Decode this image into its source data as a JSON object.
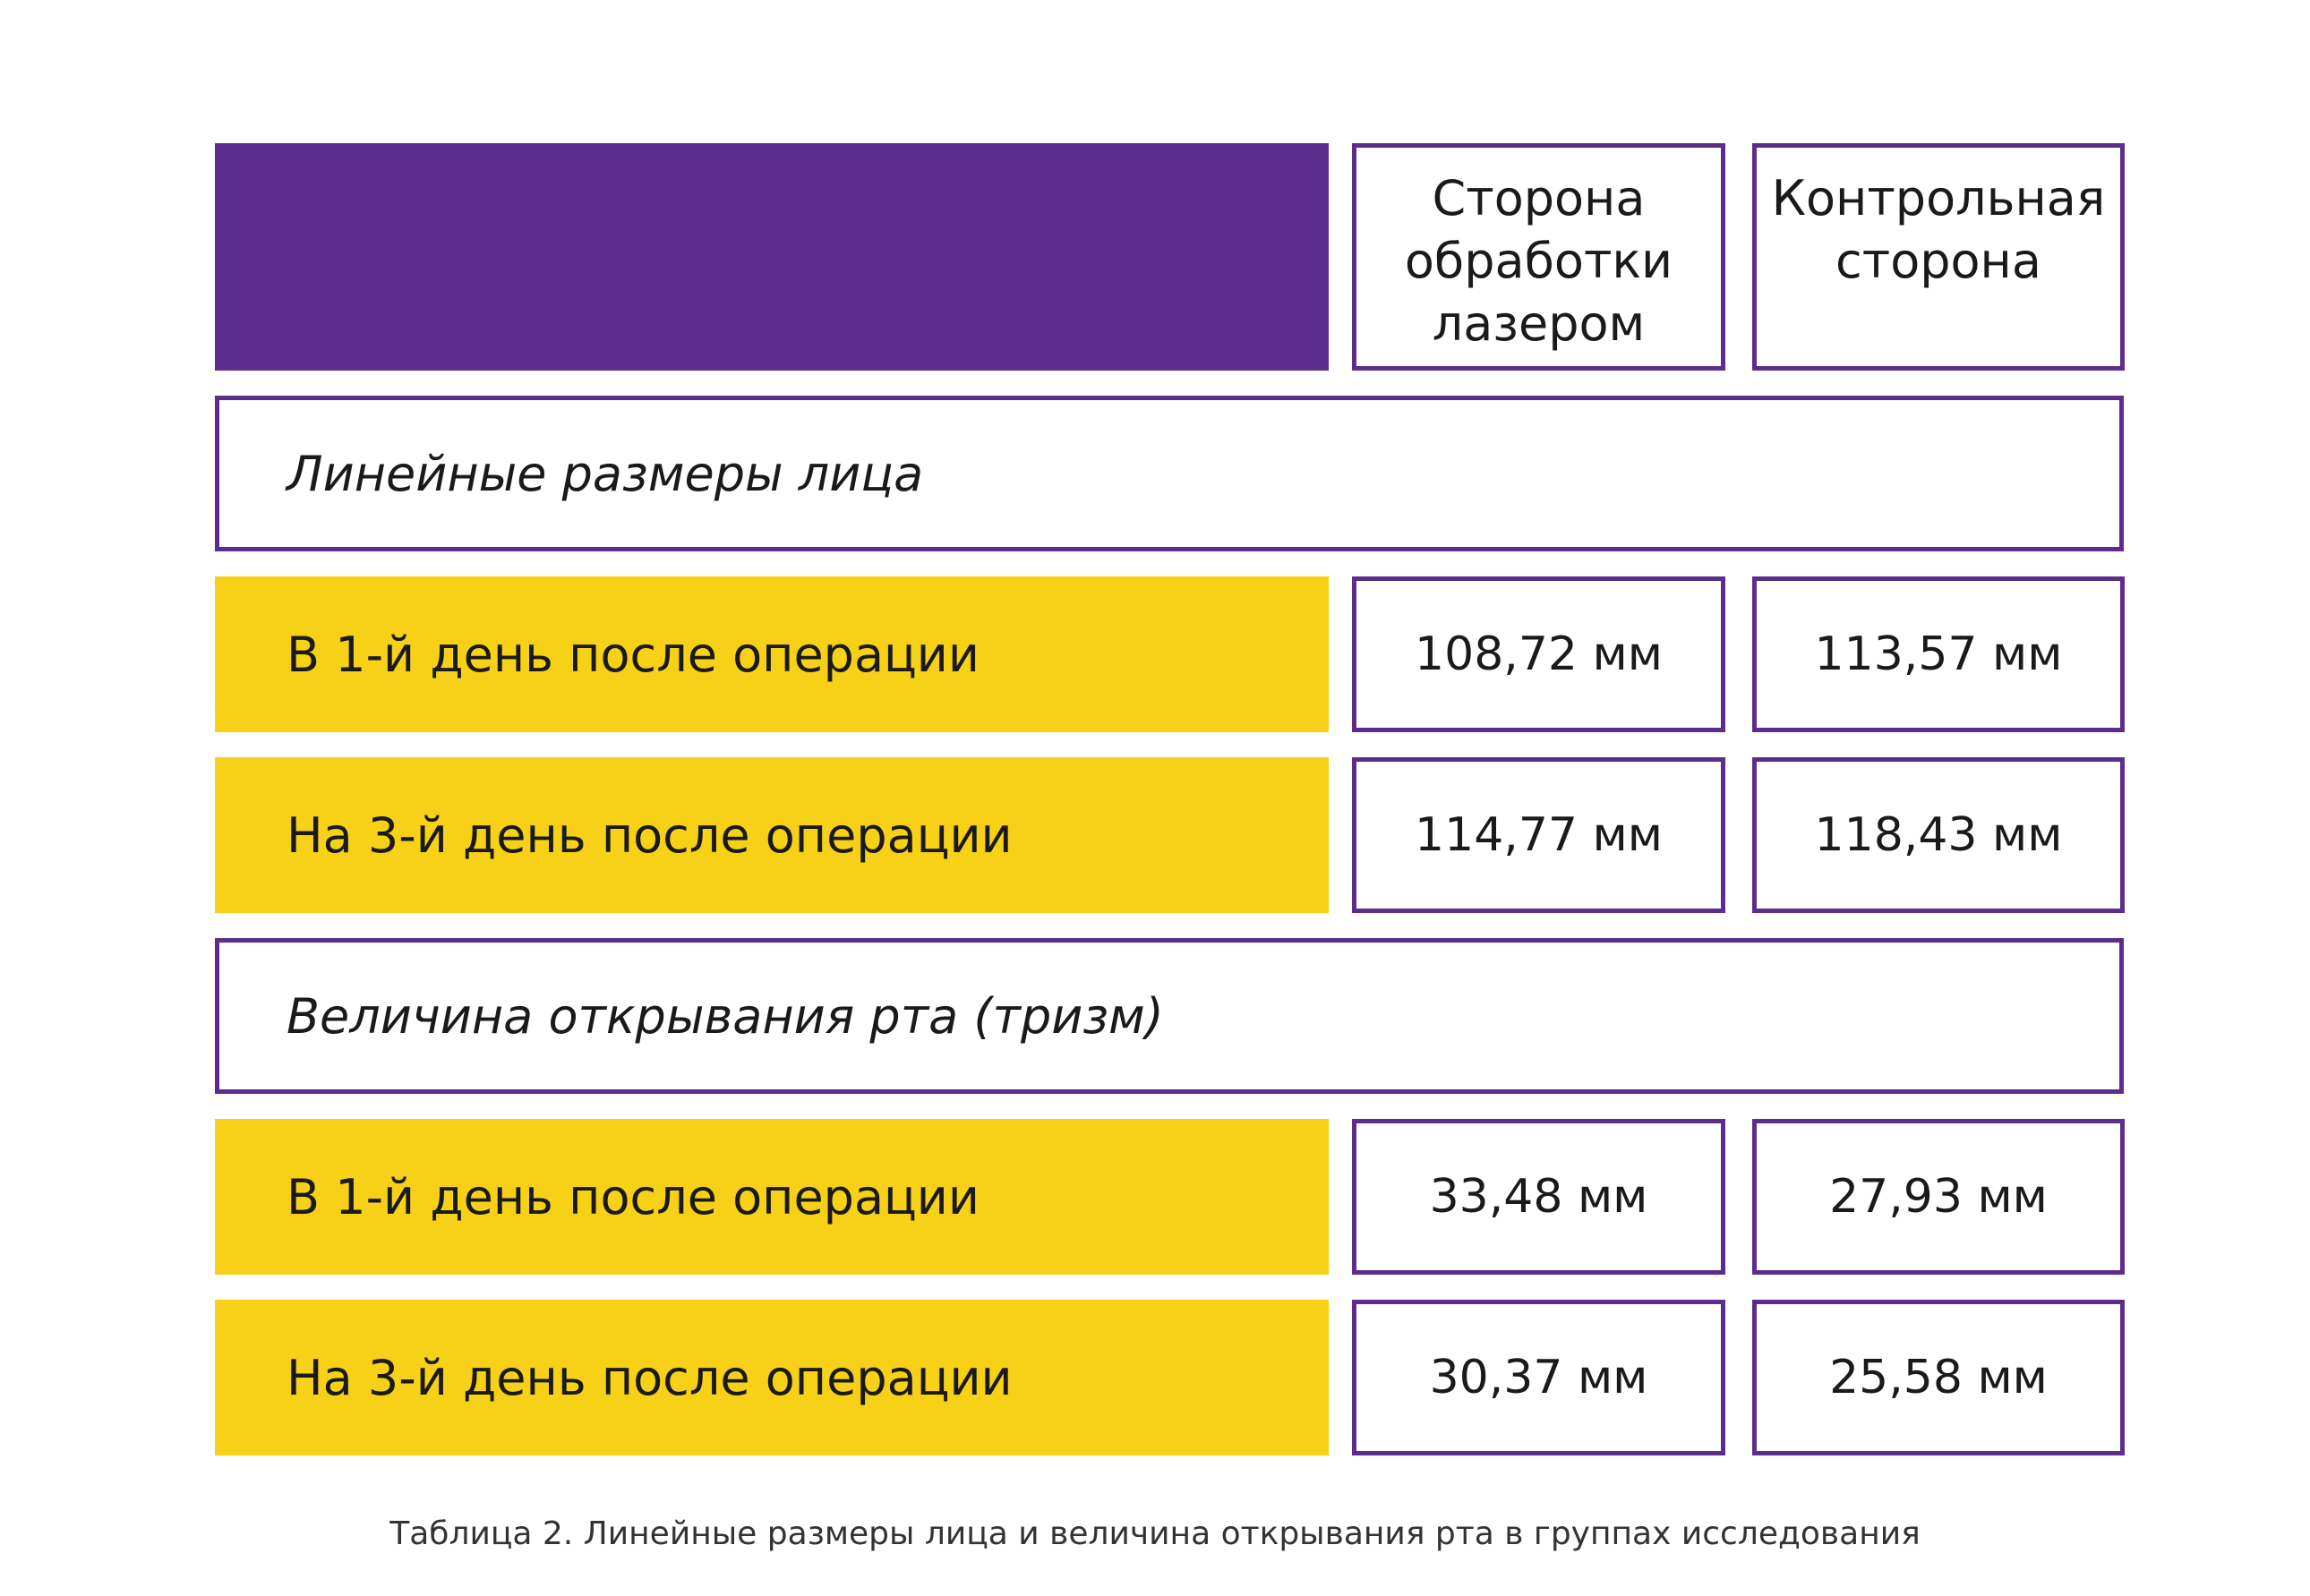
{
  "header": {
    "columns": [
      "Сторона обработки лазером",
      "Контрольная сторона"
    ]
  },
  "sections": [
    {
      "title": "Линейные размеры лица",
      "rows": [
        {
          "label": "В 1-й день после операции",
          "values": [
            "108,72 мм",
            "113,57 мм"
          ]
        },
        {
          "label": "На 3-й день после операции",
          "values": [
            "114,77 мм",
            "118,43 мм"
          ]
        }
      ]
    },
    {
      "title": "Величина открывания рта (тризм)",
      "rows": [
        {
          "label": "В 1-й день после операции",
          "values": [
            "33,48 мм",
            "27,93 мм"
          ]
        },
        {
          "label": "На 3-й день после операции",
          "values": [
            "30,37 мм",
            "25,58 мм"
          ]
        }
      ]
    }
  ],
  "caption": "Таблица 2. Линейные размеры лица и величина открывания рта в группах исследования"
}
